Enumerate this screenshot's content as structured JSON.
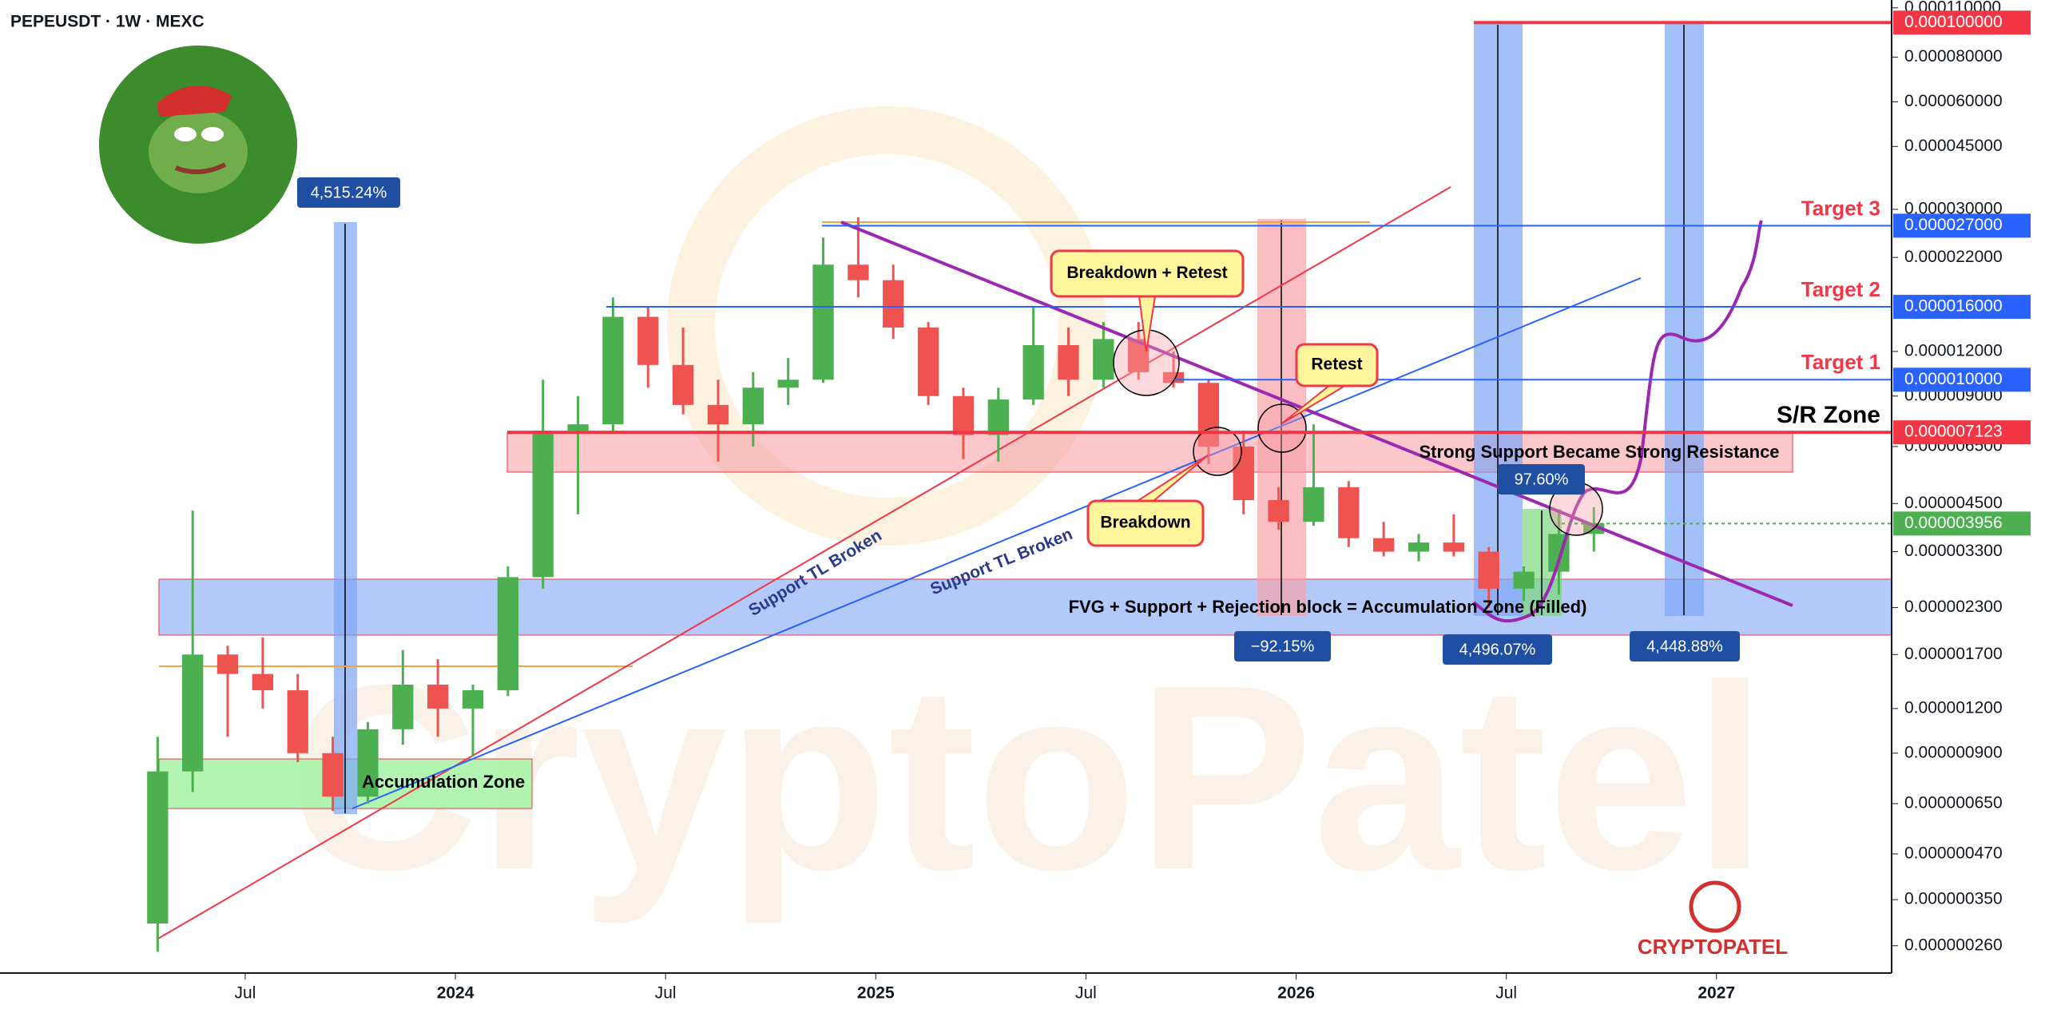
{
  "chart_data": {
    "type": "candlestick",
    "title": "PEPEUSDT · 1W · MEXC",
    "watermark": "CryptoPatel",
    "brand": "CRYPTOPATEL",
    "log_scale": true,
    "up_color": "#4caf50",
    "down_color": "#ef5350",
    "xlim": [
      "2022-12",
      "2027-06"
    ],
    "ylim": [
      2.18e-07,
      0.0001157
    ],
    "xticks": [
      {
        "value": "2023-07",
        "label": "Jul"
      },
      {
        "value": "2024-01",
        "label": "2024"
      },
      {
        "value": "2024-07",
        "label": "Jul"
      },
      {
        "value": "2025-01",
        "label": "2025"
      },
      {
        "value": "2025-07",
        "label": "Jul"
      },
      {
        "value": "2026-01",
        "label": "2026"
      },
      {
        "value": "2026-07",
        "label": "Jul"
      },
      {
        "value": "2027-01",
        "label": "2027"
      }
    ],
    "yticks": [
      {
        "value": 0.00011,
        "label": "0.000110000"
      },
      {
        "value": 8e-05,
        "label": "0.000080000"
      },
      {
        "value": 6e-05,
        "label": "0.000060000"
      },
      {
        "value": 4.5e-05,
        "label": "0.000045000"
      },
      {
        "value": 3e-05,
        "label": "0.000030000"
      },
      {
        "value": 2.2e-05,
        "label": "0.000022000"
      },
      {
        "value": 1.2e-05,
        "label": "0.000012000"
      },
      {
        "value": 9e-06,
        "label": "0.000009000"
      },
      {
        "value": 6.5e-06,
        "label": "0.000006500"
      },
      {
        "value": 4.5e-06,
        "label": "0.000004500"
      },
      {
        "value": 3.3e-06,
        "label": "0.000003300"
      },
      {
        "value": 2.3e-06,
        "label": "0.000002300"
      },
      {
        "value": 1.7e-06,
        "label": "0.000001700"
      },
      {
        "value": 1.2e-06,
        "label": "0.000001200"
      },
      {
        "value": 9e-07,
        "label": "0.000000900"
      },
      {
        "value": 6.5e-07,
        "label": "0.000000650"
      },
      {
        "value": 4.7e-07,
        "label": "0.000000470"
      },
      {
        "value": 3.5e-07,
        "label": "0.000000350"
      },
      {
        "value": 2.6e-07,
        "label": "0.000000260"
      }
    ],
    "x": [
      "2023-04",
      "2023-05",
      "2023-06",
      "2023-07",
      "2023-08",
      "2023-09",
      "2023-10",
      "2023-11",
      "2023-12",
      "2024-01",
      "2024-02",
      "2024-03",
      "2024-04",
      "2024-05",
      "2024-06",
      "2024-07",
      "2024-08",
      "2024-09",
      "2024-10",
      "2024-11",
      "2024-12",
      "2025-01",
      "2025-02",
      "2025-03",
      "2025-04",
      "2025-05",
      "2025-06",
      "2025-07",
      "2025-08",
      "2025-09",
      "2025-10",
      "2025-11",
      "2025-12",
      "2026-01",
      "2026-02",
      "2026-03",
      "2026-04",
      "2026-05",
      "2026-06",
      "2026-07",
      "2026-08",
      "2026-09"
    ],
    "open": [
      3e-07,
      8e-07,
      1.7e-06,
      1.5e-06,
      1.35e-06,
      9e-07,
      6.8e-07,
      1.05e-06,
      1.4e-06,
      1.2e-06,
      1.35e-06,
      2.8e-06,
      7.2e-06,
      7.5e-06,
      1.5e-05,
      1.1e-05,
      8.5e-06,
      7.5e-06,
      9.5e-06,
      1e-05,
      2.1e-05,
      1.9e-05,
      1.4e-05,
      9e-06,
      7e-06,
      8.8e-06,
      1.25e-05,
      1e-05,
      1.3e-05,
      1.05e-05,
      9.8e-06,
      6.5e-06,
      4.6e-06,
      4e-06,
      5e-06,
      3.6e-06,
      3.3e-06,
      3.5e-06,
      3.3e-06,
      2.6e-06,
      2.9e-06,
      3.7e-06
    ],
    "high": [
      1e-06,
      4.3e-06,
      1.8e-06,
      1.9e-06,
      1.5e-06,
      1e-06,
      1.1e-06,
      1.75e-06,
      1.65e-06,
      1.4e-06,
      3e-06,
      1e-05,
      9e-06,
      1.7e-05,
      1.6e-05,
      1.4e-05,
      1e-05,
      1.05e-05,
      1.15e-05,
      2.5e-05,
      2.85e-05,
      2.1e-05,
      1.45e-05,
      9.5e-06,
      9.5e-06,
      1.6e-05,
      1.4e-05,
      1.45e-05,
      1.45e-05,
      1.2e-05,
      1e-05,
      7.2e-06,
      5e-06,
      7.5e-06,
      5.2e-06,
      4e-06,
      3.7e-06,
      4.2e-06,
      3.4e-06,
      3e-06,
      4.3e-06,
      4.4e-06
    ],
    "low": [
      2.5e-07,
      7e-07,
      1e-06,
      1.2e-06,
      8.5e-07,
      6.2e-07,
      6.5e-07,
      9.5e-07,
      1e-06,
      8.8e-07,
      1.3e-06,
      2.6e-06,
      4.2e-06,
      7.2e-06,
      9.5e-06,
      8e-06,
      5.9e-06,
      6.5e-06,
      8.5e-06,
      9.8e-06,
      1.7e-05,
      1.3e-05,
      8.5e-06,
      6e-06,
      5.9e-06,
      8.5e-06,
      9e-06,
      9.5e-06,
      1e-05,
      9.5e-06,
      5.8e-06,
      4.2e-06,
      3.8e-06,
      3.9e-06,
      3.4e-06,
      3.2e-06,
      3.1e-06,
      3.2e-06,
      2.3e-06,
      2.4e-06,
      2.5e-06,
      3.3e-06
    ],
    "close": [
      8e-07,
      1.7e-06,
      1.5e-06,
      1.35e-06,
      9e-07,
      6.8e-07,
      1.05e-06,
      1.4e-06,
      1.2e-06,
      1.35e-06,
      2.8e-06,
      7.2e-06,
      7.5e-06,
      1.5e-05,
      1.1e-05,
      8.5e-06,
      7.5e-06,
      9.5e-06,
      1e-05,
      2.1e-05,
      1.9e-05,
      1.4e-05,
      9e-06,
      7e-06,
      8.8e-06,
      1.25e-05,
      1e-05,
      1.3e-05,
      1.05e-05,
      9.8e-06,
      6.5e-06,
      4.6e-06,
      4e-06,
      5e-06,
      3.6e-06,
      3.3e-06,
      3.5e-06,
      3.3e-06,
      2.6e-06,
      2.9e-06,
      3.7e-06,
      3.956e-06
    ],
    "levels": [
      {
        "value": 0.0001,
        "label": "0.000100000",
        "color": "#f23645"
      },
      {
        "name": "Target 3",
        "value": 2.7e-05,
        "label": "0.000027000",
        "color": "#2962ff"
      },
      {
        "name": "Target 2",
        "value": 1.6e-05,
        "label": "0.000016000",
        "color": "#2962ff"
      },
      {
        "name": "Target 1",
        "value": 1e-05,
        "label": "0.000010000",
        "color": "#2962ff"
      },
      {
        "name": "S/R Zone",
        "value": 7.123e-06,
        "label": "0.000007123",
        "color": "#f23645"
      },
      {
        "value": 3.956e-06,
        "label": "0.000003956",
        "color": "#4caf50"
      }
    ],
    "annotations": [
      "Breakdown + Retest",
      "Retest",
      "Breakdown",
      "Support TL Broken",
      "Support TL Broken",
      "Accumulation Zone",
      "Strong Support Became Strong Resistance",
      "FVG + Support + Rejection block = Accumulation Zone (Filled)"
    ],
    "measurements": [
      {
        "value": 4515.24,
        "label": "4,515.24%"
      },
      {
        "value": -92.15,
        "label": "−92.15%"
      },
      {
        "value": 4496.07,
        "label": "4,496.07%"
      },
      {
        "value": 97.6,
        "label": "97.60%"
      },
      {
        "value": 4448.88,
        "label": "4,448.88%"
      }
    ]
  }
}
